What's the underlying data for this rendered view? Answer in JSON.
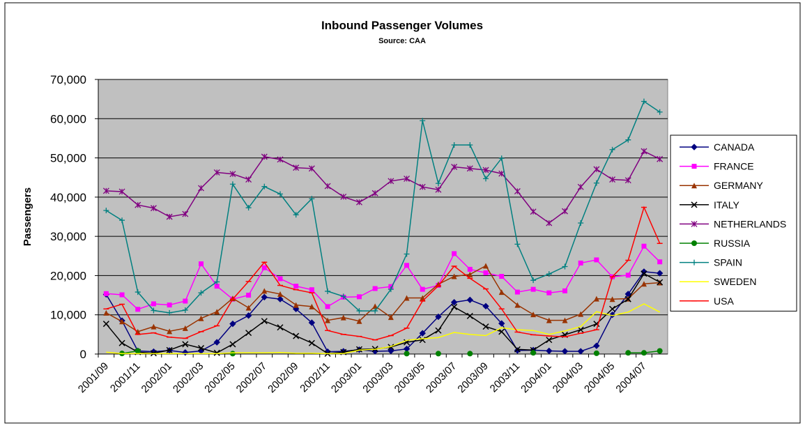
{
  "chart_data": {
    "type": "line",
    "title": "Inbound Passenger Volumes",
    "subtitle": "Source: CAA",
    "y_label": "Passengers",
    "categories": [
      "2001/09",
      null,
      "2001/11",
      null,
      "2002/01",
      null,
      "2002/03",
      null,
      "2002/05",
      null,
      "2002/07",
      null,
      "2002/09",
      null,
      "2002/11",
      null,
      "2003/01",
      null,
      "2003/03",
      null,
      "2003/05",
      null,
      "2003/07",
      null,
      "2003/09",
      null,
      "2003/11",
      null,
      "2004/01",
      null,
      "2004/03",
      null,
      "2004/05",
      null,
      "2004/07",
      null
    ],
    "ylim": [
      0,
      70000
    ],
    "yticks": [
      0,
      {
        "value": 10000,
        "label": "10,000"
      },
      {
        "value": 20000,
        "label": "20,000"
      },
      {
        "value": 30000,
        "label": "30,000"
      },
      {
        "value": 40000,
        "label": "40,000"
      },
      {
        "value": 50000,
        "label": "50,000"
      },
      {
        "value": 60000,
        "label": "60,000"
      },
      {
        "value": 70000,
        "label": "70,000"
      }
    ],
    "grid": true,
    "legend": "right",
    "series": [
      {
        "name": "CANADA",
        "color": "#000080",
        "marker": "diamond",
        "values": [
          15200,
          8500,
          800,
          600,
          900,
          400,
          800,
          3000,
          7700,
          9800,
          14500,
          14000,
          11500,
          8000,
          600,
          700,
          1100,
          700,
          800,
          1300,
          5300,
          9500,
          13200,
          13800,
          12200,
          7800,
          900,
          1000,
          800,
          700,
          700,
          2100,
          10000,
          15300,
          21000,
          20600
        ]
      },
      {
        "name": "FRANCE",
        "color": "#ff00ff",
        "marker": "square",
        "values": [
          15400,
          15100,
          11400,
          12800,
          12500,
          13500,
          23000,
          17300,
          14000,
          15000,
          22000,
          19200,
          17300,
          16400,
          12100,
          14500,
          14600,
          16700,
          17200,
          22600,
          16500,
          17500,
          25600,
          21600,
          20700,
          19800,
          15800,
          16500,
          15600,
          16100,
          23200,
          24000,
          19700,
          20100,
          27500,
          23500
        ]
      },
      {
        "name": "GERMANY",
        "color": "#993300",
        "marker": "triangle",
        "values": [
          10500,
          8300,
          5700,
          7000,
          5800,
          6600,
          9100,
          10800,
          14200,
          11800,
          16100,
          15300,
          12500,
          12100,
          8600,
          9300,
          8400,
          12200,
          9400,
          14300,
          14300,
          17800,
          19800,
          20300,
          22500,
          15800,
          12500,
          10100,
          8600,
          8600,
          10200,
          14100,
          14000,
          14100,
          17900,
          18200
        ]
      },
      {
        "name": "ITALY",
        "color": "#000000",
        "marker": "x",
        "values": [
          7700,
          2800,
          500,
          200,
          1000,
          2500,
          1500,
          300,
          2500,
          5400,
          8400,
          6800,
          4600,
          2800,
          100,
          500,
          1200,
          1300,
          1800,
          3000,
          3600,
          6000,
          12000,
          9700,
          7000,
          5700,
          1200,
          1000,
          3600,
          4900,
          6200,
          7700,
          11500,
          14000,
          20500,
          18300
        ]
      },
      {
        "name": "NETHERLANDS",
        "color": "#800080",
        "marker": "star",
        "values": [
          41600,
          41400,
          38000,
          37200,
          35000,
          35700,
          42300,
          46300,
          45900,
          44500,
          50300,
          49600,
          47500,
          47300,
          42800,
          40100,
          38700,
          41000,
          44100,
          44700,
          42600,
          41900,
          47700,
          47300,
          46900,
          46000,
          41500,
          36300,
          33400,
          36400,
          42600,
          47100,
          44500,
          44300,
          51700,
          49700
        ]
      },
      {
        "name": "RUSSIA",
        "color": "#008000",
        "marker": "circle",
        "values": [
          null,
          150,
          800,
          null,
          null,
          null,
          null,
          null,
          100,
          null,
          null,
          null,
          null,
          null,
          null,
          null,
          null,
          null,
          null,
          100,
          null,
          100,
          null,
          100,
          null,
          null,
          null,
          300,
          null,
          null,
          null,
          200,
          null,
          300,
          300,
          800
        ]
      },
      {
        "name": "SPAIN",
        "color": "#008080",
        "marker": "plus",
        "values": [
          36600,
          34100,
          15800,
          11100,
          10500,
          11200,
          15600,
          18400,
          43300,
          37300,
          42700,
          40800,
          35500,
          39600,
          16000,
          14700,
          11000,
          11000,
          16500,
          25500,
          59500,
          43500,
          53300,
          53300,
          44700,
          49900,
          28000,
          18800,
          20400,
          22300,
          33400,
          43600,
          52100,
          54600,
          64400,
          61700
        ]
      },
      {
        "name": "SWEDEN",
        "color": "#ffff00",
        "marker": "none",
        "values": [
          500,
          100,
          100,
          100,
          100,
          100,
          100,
          100,
          300,
          300,
          300,
          400,
          200,
          200,
          100,
          100,
          1000,
          1200,
          1900,
          3500,
          3900,
          4200,
          5500,
          5000,
          4700,
          6700,
          6200,
          6000,
          5000,
          5900,
          7000,
          10800,
          9800,
          10700,
          12800,
          10700
        ]
      },
      {
        "name": "USA",
        "color": "#ff0000",
        "marker": "dash",
        "values": [
          11500,
          12700,
          5000,
          5400,
          4300,
          4000,
          5700,
          7200,
          14000,
          18500,
          23400,
          17500,
          16400,
          15600,
          6000,
          5000,
          4500,
          3600,
          4700,
          6600,
          13500,
          17400,
          22400,
          19300,
          16600,
          11500,
          5600,
          4900,
          4600,
          4400,
          5300,
          6200,
          19700,
          23900,
          37400,
          28200
        ]
      }
    ]
  }
}
